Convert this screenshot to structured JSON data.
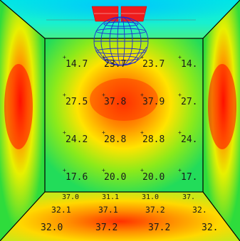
{
  "wall_grid": {
    "rows": [
      [
        "14.7",
        "23.7",
        "23.7",
        "14."
      ],
      [
        "27.5",
        "37.8",
        "37.9",
        "27."
      ],
      [
        "24.2",
        "28.8",
        "28.8",
        "24."
      ],
      [
        "17.6",
        "20.0",
        "20.0",
        "17."
      ]
    ]
  },
  "floor_grid": {
    "rows": [
      [
        "37.0",
        "31.1",
        "31.0",
        "37."
      ],
      [
        "32.1",
        "37.1",
        "37.2",
        "32."
      ],
      [
        "32.0",
        "37.2",
        "37.2",
        "32."
      ]
    ]
  },
  "colors": {
    "hot": "#ff2a00",
    "warm": "#ffd800",
    "mid": "#2ee04a",
    "cool": "#00f0e0",
    "lamp_red": "#ee1c1c",
    "lamp_wire": "#1f2bd6"
  },
  "icons": {
    "lamp": "luminaire-icon",
    "sphere": "wireframe-sphere-icon"
  }
}
